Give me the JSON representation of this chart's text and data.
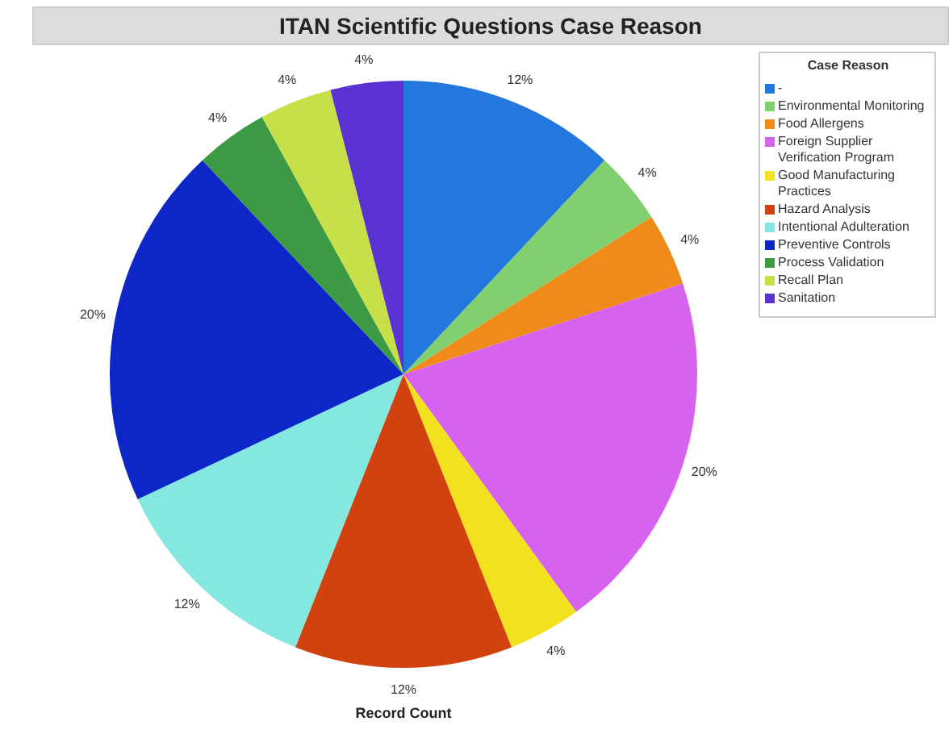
{
  "chart_data": {
    "type": "pie",
    "title": "ITAN Scientific Questions Case Reason",
    "xlabel": "Record Count",
    "legend_title": "Case Reason",
    "legend": "right",
    "categories": [
      "-",
      "Environmental Monitoring",
      "Food Allergens",
      "Foreign Supplier Verification Program",
      "Good Manufacturing Practices",
      "Hazard Analysis",
      "Intentional Adulteration",
      "Preventive Controls",
      "Process Validation",
      "Recall Plan",
      "Sanitation"
    ],
    "values": [
      12,
      4,
      4,
      20,
      4,
      12,
      12,
      20,
      4,
      4,
      4
    ],
    "value_labels": [
      "12%",
      "4%",
      "4%",
      "20%",
      "4%",
      "12%",
      "12%",
      "20%",
      "4%",
      "4%",
      "4%"
    ],
    "colors": [
      "#2278dc",
      "#80d070",
      "#f08a18",
      "#d862f0",
      "#f2e21e",
      "#d2420e",
      "#84e8e0",
      "#0c26c8",
      "#3c9a44",
      "#c8e048",
      "#5a32d2"
    ]
  }
}
